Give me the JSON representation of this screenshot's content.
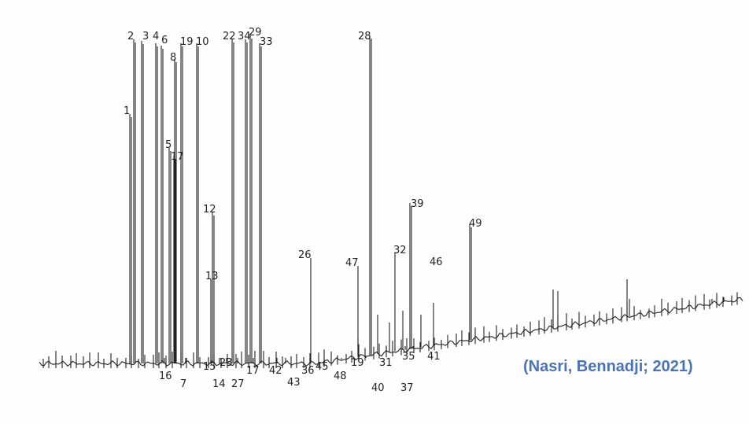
{
  "figure": {
    "peak_labels": [
      "2",
      "3",
      "4",
      "6",
      "19",
      "10",
      "8",
      "22",
      "34",
      "29",
      "33",
      "28",
      "1",
      "5",
      "17",
      "12",
      "13",
      "26",
      "47",
      "32",
      "39",
      "46",
      "49",
      "16",
      "7",
      "15",
      "14",
      "23",
      "27",
      "17",
      "42",
      "43",
      "36",
      "45",
      "48",
      "19",
      "40",
      "31",
      "35",
      "37",
      "41"
    ],
    "citation": "(Nasri, Bennadji; 2021)"
  }
}
